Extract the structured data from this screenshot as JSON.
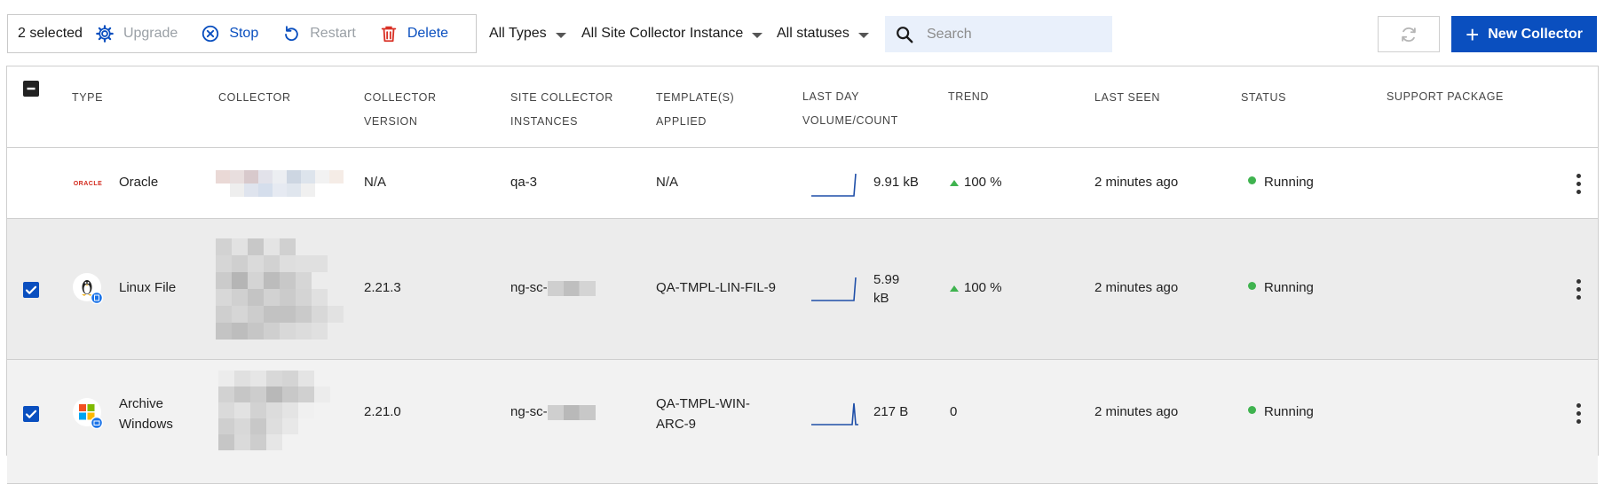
{
  "toolbar": {
    "selected_count": "2 selected",
    "actions": {
      "upgrade": "Upgrade",
      "stop": "Stop",
      "restart": "Restart",
      "delete": "Delete"
    },
    "filters": {
      "types": "All Types",
      "site_collector": "All Site Collector Instance",
      "statuses": "All statuses"
    },
    "search_placeholder": "Search",
    "new_collector": "New Collector"
  },
  "colors": {
    "accent": "#0a4fbf",
    "running": "#3fb34f",
    "selected_row": "#ececec",
    "delete_icon": "#d93025"
  },
  "table": {
    "headers": {
      "type": "TYPE",
      "collector": "COLLECTOR",
      "version_1": "COLLECTOR",
      "version_2": "VERSION",
      "site_1": "SITE COLLECTOR",
      "site_2": "INSTANCES",
      "templates_1": "TEMPLATE(S)",
      "templates_2": "APPLIED",
      "volume_1": "LAST DAY",
      "volume_2": "VOLUME/COUNT",
      "trend": "TREND",
      "last_seen": "LAST SEEN",
      "status": "STATUS",
      "support": "SUPPORT PACKAGE"
    },
    "rows": [
      {
        "type": "Oracle",
        "type_icon": "oracle-logo",
        "logo_text": "ORACLE",
        "version": "N/A",
        "site": "qa-3",
        "templates": "N/A",
        "volume": "9.91 kB",
        "trend": "100 %",
        "trend_direction": "up",
        "last_seen": "2 minutes ago",
        "status": "Running",
        "checked": false
      },
      {
        "type": "Linux File",
        "type_icon": "linux-file-icon",
        "version": "2.21.3",
        "site": "ng-sc-",
        "templates": "QA-TMPL-LIN-FIL-9",
        "volume_1": "5.99",
        "volume_2": "kB",
        "trend": "100 %",
        "trend_direction": "up",
        "last_seen": "2 minutes ago",
        "status": "Running",
        "checked": true
      },
      {
        "type_1": "Archive",
        "type_2": "Windows",
        "type_icon": "windows-archive-icon",
        "version": "2.21.0",
        "site": "ng-sc-",
        "templates_1": "QA-TMPL-WIN-",
        "templates_2": "ARC-9",
        "volume": "217 B",
        "trend": "0",
        "last_seen": "2 minutes ago",
        "status": "Running",
        "checked": true
      }
    ]
  }
}
